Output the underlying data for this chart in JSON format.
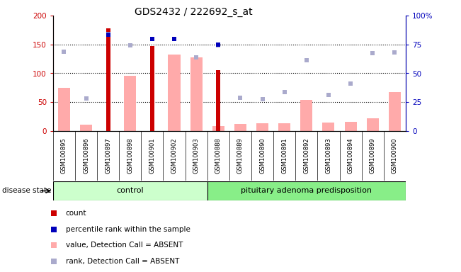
{
  "title": "GDS2432 / 222692_s_at",
  "samples": [
    "GSM100895",
    "GSM100896",
    "GSM100897",
    "GSM100898",
    "GSM100901",
    "GSM100902",
    "GSM100903",
    "GSM100888",
    "GSM100889",
    "GSM100890",
    "GSM100891",
    "GSM100892",
    "GSM100893",
    "GSM100894",
    "GSM100899",
    "GSM100900"
  ],
  "n_control": 7,
  "n_disease": 9,
  "count_values": [
    0,
    0,
    178,
    0,
    147,
    0,
    0,
    105,
    0,
    0,
    0,
    0,
    0,
    0,
    0,
    0
  ],
  "value_absent": [
    75,
    11,
    0,
    96,
    0,
    133,
    127,
    8,
    12,
    13,
    14,
    54,
    15,
    16,
    22,
    68
  ],
  "rank_absent_pct": [
    69,
    28.5,
    84,
    74,
    80,
    80,
    64,
    74,
    29,
    27.5,
    34,
    61.5,
    31.5,
    41,
    67.5,
    68
  ],
  "percentile_rank_pct": [
    null,
    null,
    83.5,
    null,
    80,
    80,
    null,
    75,
    null,
    null,
    null,
    null,
    null,
    null,
    null,
    null
  ],
  "ylim_left": [
    0,
    200
  ],
  "ylim_right": [
    0,
    100
  ],
  "yticks_left": [
    0,
    50,
    100,
    150,
    200
  ],
  "yticks_right": [
    0,
    25,
    50,
    75,
    100
  ],
  "ytick_labels_right": [
    "0",
    "25",
    "50",
    "75",
    "100%"
  ],
  "color_count": "#cc0000",
  "color_percentile": "#0000bb",
  "color_value_absent": "#ffaaaa",
  "color_rank_absent": "#aaaacc",
  "color_control_bg": "#ccffcc",
  "color_disease_bg": "#88ee88",
  "color_axis_left": "#cc0000",
  "color_axis_right": "#0000bb",
  "legend_items": [
    {
      "label": "count",
      "color": "#cc0000"
    },
    {
      "label": "percentile rank within the sample",
      "color": "#0000bb"
    },
    {
      "label": "value, Detection Call = ABSENT",
      "color": "#ffaaaa"
    },
    {
      "label": "rank, Detection Call = ABSENT",
      "color": "#aaaacc"
    }
  ]
}
